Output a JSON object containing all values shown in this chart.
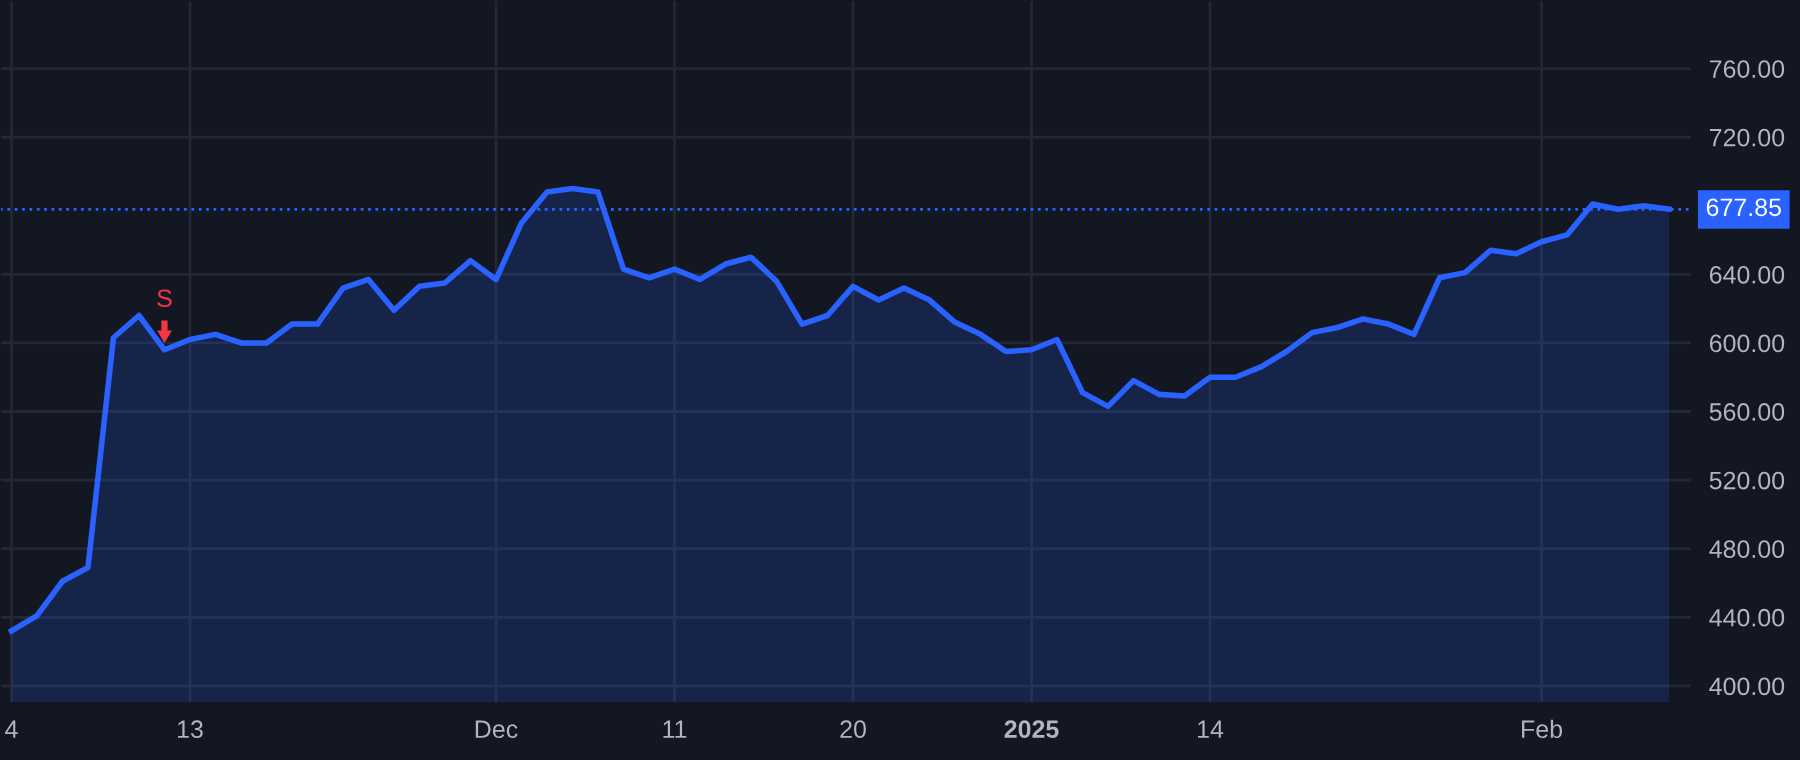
{
  "chart_data": {
    "type": "area",
    "categories": [
      "4",
      null,
      null,
      null,
      null,
      null,
      null,
      "13",
      null,
      null,
      null,
      null,
      null,
      null,
      null,
      null,
      null,
      null,
      null,
      "Dec",
      null,
      null,
      null,
      null,
      null,
      null,
      "11",
      null,
      null,
      null,
      null,
      null,
      null,
      "20",
      null,
      null,
      null,
      null,
      null,
      null,
      "2025",
      null,
      null,
      null,
      null,
      null,
      null,
      "14",
      null,
      null,
      null,
      null,
      null,
      null,
      null,
      null,
      null,
      null,
      null,
      null,
      "Feb",
      null,
      null,
      null,
      null,
      null
    ],
    "series": [
      {
        "color": "#2962ff",
        "values": [
          432,
          441,
          461,
          469,
          603,
          616,
          596,
          602,
          605,
          600,
          600,
          611,
          611,
          632,
          637,
          619,
          633,
          635,
          648,
          637,
          670,
          688,
          690,
          688,
          643,
          638,
          643,
          637,
          646,
          650,
          636,
          611,
          616,
          633,
          625,
          632,
          625,
          612,
          605,
          595,
          596,
          602,
          571,
          563,
          578,
          570,
          569,
          580,
          580,
          586,
          595,
          606,
          609,
          614,
          611,
          605,
          638,
          641,
          654,
          652,
          659,
          663,
          681,
          678,
          680,
          678
        ]
      }
    ],
    "ylim": [
      390,
      800
    ],
    "yticks": [
      {
        "value": 400,
        "label": "400.00"
      },
      {
        "value": 440,
        "label": "440.00"
      },
      {
        "value": 480,
        "label": "480.00"
      },
      {
        "value": 520,
        "label": "520.00"
      },
      {
        "value": 560,
        "label": "560.00"
      },
      {
        "value": 600,
        "label": "600.00"
      },
      {
        "value": 640,
        "label": "640.00"
      },
      {
        "value": 720,
        "label": "720.00"
      },
      {
        "value": 760,
        "label": "760.00"
      }
    ],
    "grid": true,
    "ref_lines": [
      {
        "axis": "y",
        "value": 677.85,
        "label": "677.85",
        "color": "#2962ff",
        "line_style": "dotted"
      }
    ],
    "annotations": [
      {
        "text": "S",
        "y": 596
      }
    ]
  }
}
